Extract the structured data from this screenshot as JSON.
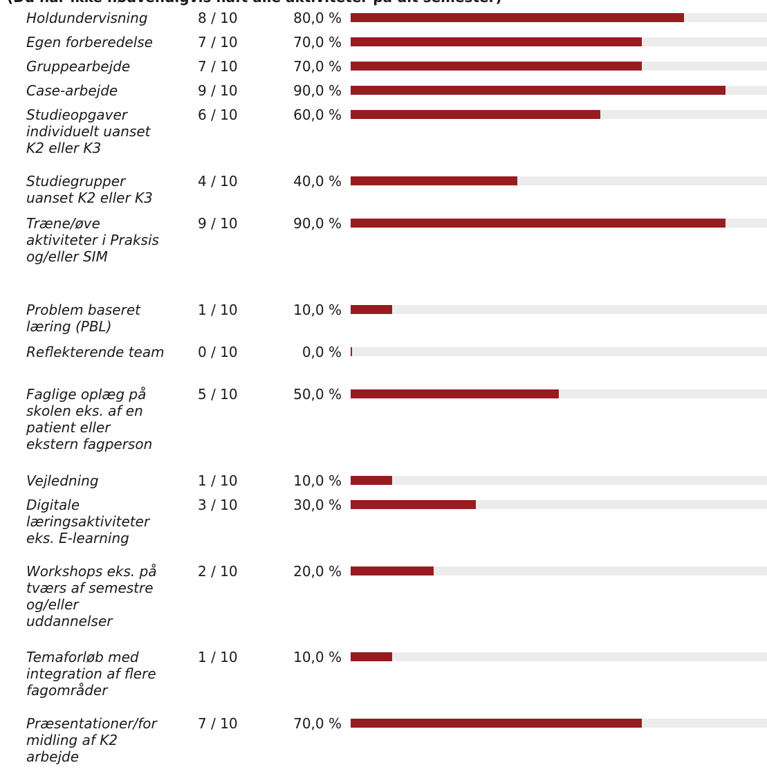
{
  "header": "(Du har ikke nødvendigvis haft alle aktiviteter på dit semester)",
  "chart_data": {
    "type": "bar",
    "orientation": "horizontal",
    "total": 10,
    "bar_color": "#961c20",
    "track_color": "#ececec",
    "xlim": [
      0,
      100
    ],
    "rows": [
      {
        "category": "Holdundervisning",
        "count": "8 / 10",
        "percent_label": "80,0 %",
        "value": 80
      },
      {
        "category": "Egen forberedelse",
        "count": "7 / 10",
        "percent_label": "70,0 %",
        "value": 70
      },
      {
        "category": "Gruppearbejde",
        "count": "7 / 10",
        "percent_label": "70,0 %",
        "value": 70
      },
      {
        "category": "Case-arbejde",
        "count": "9 / 10",
        "percent_label": "90,0 %",
        "value": 90
      },
      {
        "category": "Studieopgaver individuelt uanset K2 eller K3",
        "count": "6 / 10",
        "percent_label": "60,0 %",
        "value": 60
      },
      {
        "category": "Studiegrupper uanset K2 eller K3",
        "count": "4 / 10",
        "percent_label": "40,0 %",
        "value": 40
      },
      {
        "category": "Træne/øve aktiviteter i Praksis og/eller SIM",
        "count": "9 / 10",
        "percent_label": "90,0 %",
        "value": 90
      },
      {
        "category": "Problem baseret læring (PBL)",
        "count": "1 / 10",
        "percent_label": "10,0 %",
        "value": 10
      },
      {
        "category": "Reflekterende team",
        "count": "0 / 10",
        "percent_label": "0,0 %",
        "value": 0
      },
      {
        "category": "Faglige oplæg på skolen eks. af en patient eller ekstern fagperson",
        "count": "5 / 10",
        "percent_label": "50,0 %",
        "value": 50
      },
      {
        "category": "Vejledning",
        "count": "1 / 10",
        "percent_label": "10,0 %",
        "value": 10
      },
      {
        "category": "Digitale læringsaktiviteter eks. E-learning",
        "count": "3 / 10",
        "percent_label": "30,0 %",
        "value": 30
      },
      {
        "category": "Workshops eks. på tværs af semestre og/eller uddannelser",
        "count": "2 / 10",
        "percent_label": "20,0 %",
        "value": 20
      },
      {
        "category": "Temaforløb med integration af flere fagområder",
        "count": "1 / 10",
        "percent_label": "10,0 %",
        "value": 10
      },
      {
        "category": "Præsentationer/formidling af K2 arbejde",
        "count": "7 / 10",
        "percent_label": "70,0 %",
        "value": 70
      }
    ]
  }
}
